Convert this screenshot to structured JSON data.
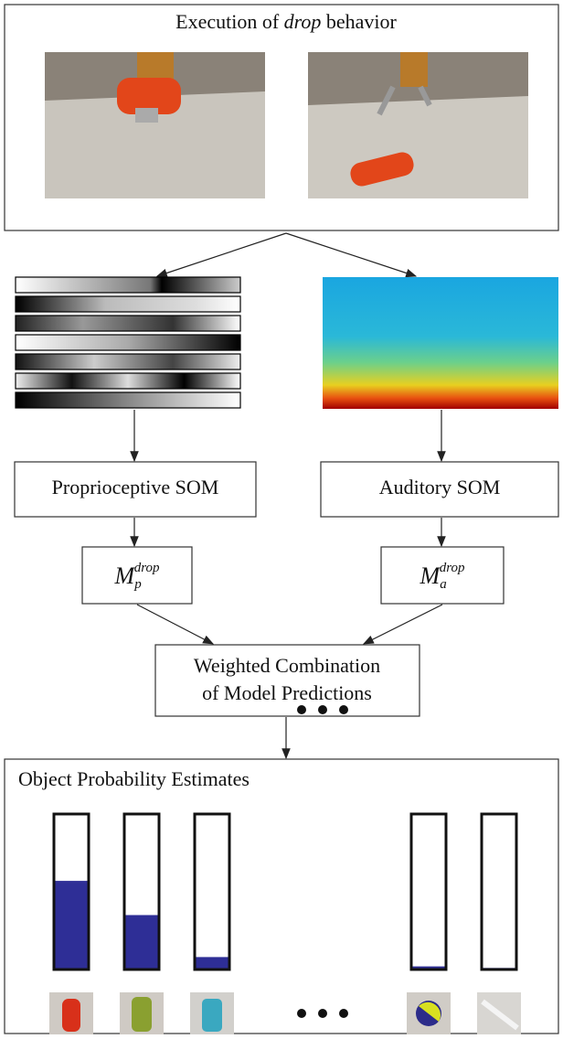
{
  "header": {
    "title_prefix": "Execution of",
    "title_emphasis": "drop",
    "title_suffix": "behavior"
  },
  "nodes": [
    {
      "label": "Proprioceptive SOM"
    },
    {
      "label": "Auditory SOM"
    },
    {
      "symbol": "M",
      "subscript": "p",
      "superscript": "drop"
    },
    {
      "symbol": "M",
      "subscript": "a",
      "superscript": "drop"
    },
    {
      "lines": [
        "Weighted Combination",
        "of Model Predictions"
      ]
    }
  ],
  "estimates": {
    "title": "Object Probability Estimates",
    "probabilities": [
      0.57,
      0.35,
      0.08,
      0.02,
      0.01
    ]
  }
}
